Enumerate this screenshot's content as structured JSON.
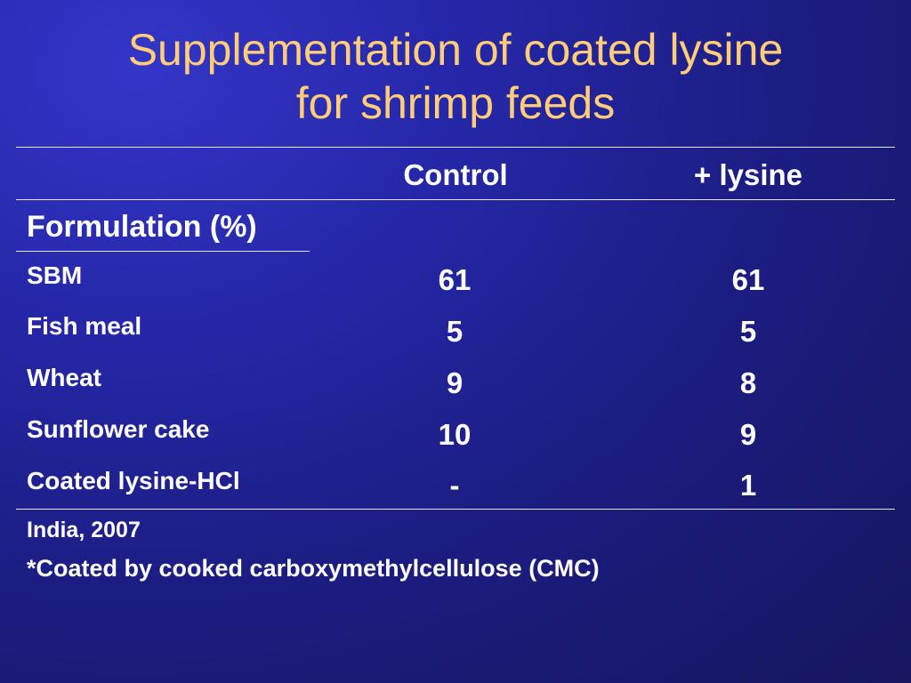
{
  "title": {
    "line1": "Supplementation of coated lysine",
    "line2": "for shrimp feeds"
  },
  "table": {
    "columns": [
      "Control",
      "+ lysine"
    ],
    "section_label": "Formulation (%)",
    "rows": [
      {
        "label": "SBM",
        "control": "61",
        "lysine": "61"
      },
      {
        "label": "Fish meal",
        "control": "5",
        "lysine": "5"
      },
      {
        "label": "Wheat",
        "control": "9",
        "lysine": "8"
      },
      {
        "label": "Sunflower cake",
        "control": "10",
        "lysine": "9"
      },
      {
        "label": "Coated lysine-HCl",
        "control": "-",
        "lysine": "1"
      }
    ]
  },
  "notes": {
    "source": "India, 2007",
    "footnote": "*Coated by cooked carboxymethylcellulose (CMC)"
  },
  "colors": {
    "title": "#ffcc77",
    "text": "#ffffff",
    "background": "#1c1d82"
  }
}
